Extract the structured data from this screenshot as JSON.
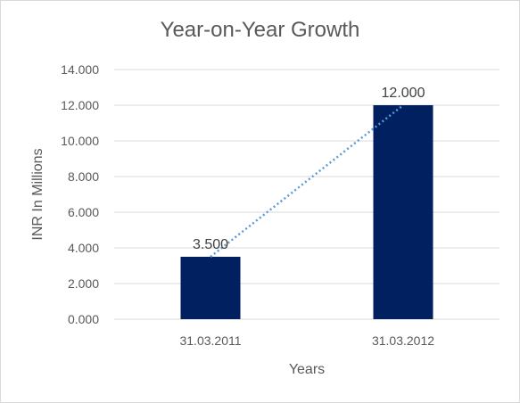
{
  "chart_data": {
    "type": "bar",
    "title": "Year-on-Year Growth",
    "xlabel": "Years",
    "ylabel": "INR In Millions",
    "categories": [
      "31.03.2011",
      "31.03.2012"
    ],
    "values": [
      3.5,
      12.0
    ],
    "data_labels": [
      "3.500",
      "12.000"
    ],
    "ylim": [
      0,
      14
    ],
    "yticks": [
      0,
      2,
      4,
      6,
      8,
      10,
      12,
      14
    ],
    "ytick_labels": [
      "0.000",
      "2.000",
      "4.000",
      "6.000",
      "8.000",
      "10.000",
      "12.000",
      "14.000"
    ],
    "grid": true,
    "legend": "none",
    "trendline": "linear, dotted",
    "colors": {
      "bar": "#002060",
      "trendline": "#5b9bd5",
      "grid": "#d9d9d9"
    }
  }
}
